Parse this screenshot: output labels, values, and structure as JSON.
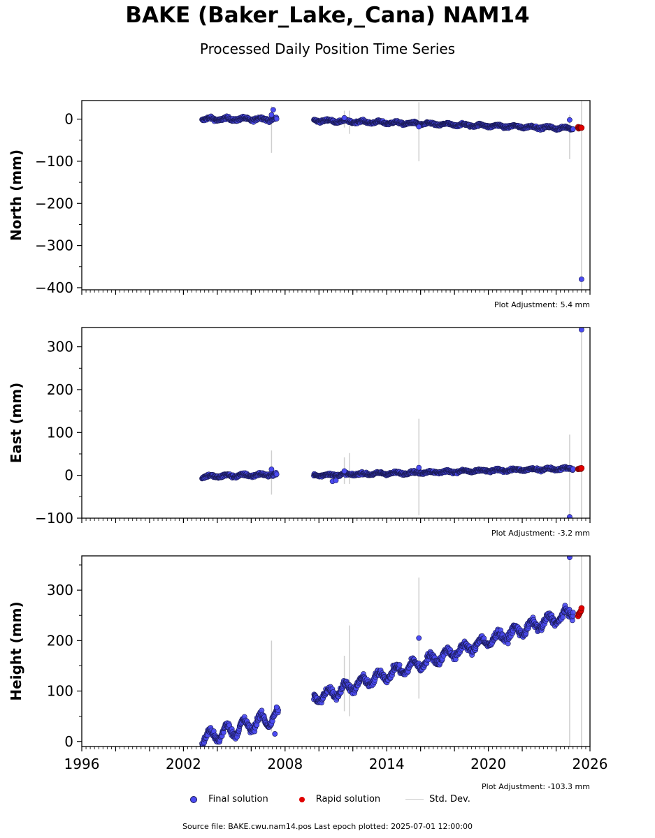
{
  "title": "BAKE (Baker_Lake,_Cana) NAM14",
  "subtitle": "Processed Daily Position Time Series",
  "source_text": "Source file: BAKE.cwu.nam14.pos  Last epoch plotted: 2025-07-01 12:00:00",
  "legend": {
    "final": "Final solution",
    "rapid": "Rapid solution",
    "std": "Std. Dev."
  },
  "colors": {
    "final": "#4b4bf2",
    "final_edge": "#1a1a55",
    "rapid": "#e00000",
    "std": "#cfcfcf"
  },
  "chart_data": [
    {
      "type": "scatter",
      "ylabel": "North (mm)",
      "xlim": [
        1996,
        2026
      ],
      "ylim": [
        -405,
        44
      ],
      "yticks": [
        0,
        -100,
        -200,
        -300,
        -400
      ],
      "yticklabels": [
        "0",
        "−100",
        "−200",
        "−300",
        "−400"
      ],
      "xticks": [],
      "adjustment": "Plot Adjustment: 5.4 mm",
      "series": [
        {
          "kind": "final",
          "segments": [
            {
              "x0": 2003.1,
              "x1": 2007.5,
              "y0": 0,
              "y1": 0,
              "amp": 3,
              "noise": 2.5
            },
            {
              "x0": 2009.7,
              "x1": 2025.0,
              "y0": -3,
              "y1": -22,
              "amp": 2.5,
              "noise": 2
            }
          ],
          "outliers": [
            [
              2007.2,
              10
            ],
            [
              2007.3,
              22
            ],
            [
              2015.9,
              -18
            ],
            [
              2024.8,
              -2
            ],
            [
              2025.5,
              -380
            ],
            [
              2011.5,
              3
            ]
          ]
        },
        {
          "kind": "rapid",
          "x0": 2025.3,
          "x1": 2025.5,
          "y0": -20,
          "y1": -21
        },
        {
          "kind": "std",
          "bars": [
            [
              2007.2,
              -80,
              30
            ],
            [
              2011.5,
              -20,
              20
            ],
            [
              2011.8,
              -35,
              20
            ],
            [
              2015.9,
              -100,
              40
            ],
            [
              2024.8,
              -95,
              10
            ],
            [
              2025.5,
              -405,
              44
            ]
          ]
        }
      ]
    },
    {
      "type": "scatter",
      "ylabel": "East (mm)",
      "xlim": [
        1996,
        2026
      ],
      "ylim": [
        -100,
        345
      ],
      "yticks": [
        300,
        200,
        100,
        0,
        -100
      ],
      "yticklabels": [
        "300",
        "200",
        "100",
        "0",
        "−100"
      ],
      "xticks": [],
      "adjustment": "Plot Adjustment: -3.2 mm",
      "series": [
        {
          "kind": "final",
          "segments": [
            {
              "x0": 2003.1,
              "x1": 2007.5,
              "y0": -3,
              "y1": 2,
              "amp": 2.5,
              "noise": 2.5
            },
            {
              "x0": 2009.7,
              "x1": 2025.0,
              "y0": 0,
              "y1": 16,
              "amp": 2,
              "noise": 2
            }
          ],
          "outliers": [
            [
              2007.2,
              14
            ],
            [
              2010.8,
              -14
            ],
            [
              2011.0,
              -12
            ],
            [
              2011.5,
              10
            ],
            [
              2015.9,
              18
            ],
            [
              2024.8,
              -97
            ],
            [
              2025.5,
              340
            ]
          ]
        },
        {
          "kind": "rapid",
          "x0": 2025.3,
          "x1": 2025.5,
          "y0": 15,
          "y1": 16
        },
        {
          "kind": "std",
          "bars": [
            [
              2007.2,
              -45,
              58
            ],
            [
              2011.5,
              -20,
              42
            ],
            [
              2011.8,
              -20,
              52
            ],
            [
              2015.9,
              -93,
              132
            ],
            [
              2024.8,
              -100,
              95
            ],
            [
              2025.5,
              -100,
              345
            ]
          ]
        }
      ]
    },
    {
      "type": "scatter",
      "ylabel": "Height (mm)",
      "xlim": [
        1996,
        2026
      ],
      "ylim": [
        -10,
        368
      ],
      "yticks": [
        300,
        200,
        100,
        0
      ],
      "yticklabels": [
        "300",
        "200",
        "100",
        "0"
      ],
      "xticks": [
        1996,
        2002,
        2008,
        2014,
        2020,
        2026
      ],
      "adjustment": "Plot Adjustment: -103.3 mm",
      "series": [
        {
          "kind": "final",
          "segments": [
            {
              "x0": 2003.1,
              "x1": 2007.6,
              "y0": 5,
              "y1": 50,
              "amp": 13,
              "noise": 5
            },
            {
              "x0": 2009.7,
              "x1": 2025.0,
              "y0": 85,
              "y1": 255,
              "amp": 10,
              "noise": 5
            }
          ],
          "outliers": [
            [
              2007.4,
              15
            ],
            [
              2007.5,
              68
            ],
            [
              2015.9,
              205
            ],
            [
              2024.8,
              365
            ]
          ]
        },
        {
          "kind": "rapid",
          "x0": 2025.3,
          "x1": 2025.5,
          "y0": 250,
          "y1": 262
        },
        {
          "kind": "std",
          "bars": [
            [
              2007.2,
              20,
              200
            ],
            [
              2011.5,
              60,
              170
            ],
            [
              2011.8,
              50,
              230
            ],
            [
              2015.9,
              85,
              325
            ],
            [
              2024.8,
              -10,
              368
            ],
            [
              2025.5,
              -10,
              368
            ]
          ]
        }
      ]
    }
  ]
}
